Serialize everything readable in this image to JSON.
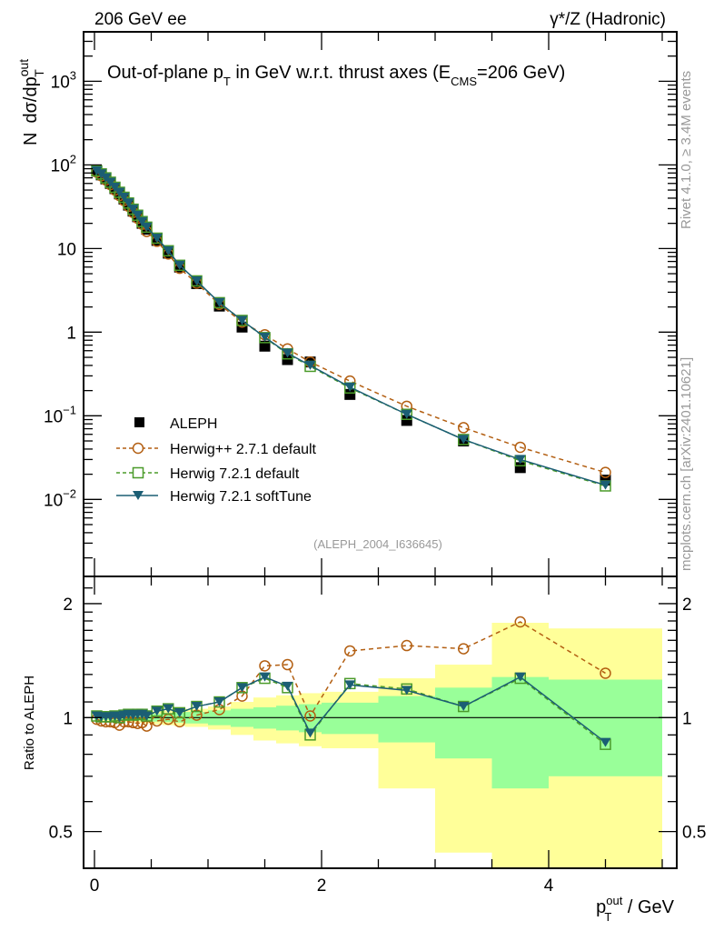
{
  "header": {
    "left": "206 GeV ee",
    "right": "γ*/Z (Hadronic)"
  },
  "side_text": {
    "rivet": "Rivet 4.1.0, ≥ 3.4M events",
    "mcplots": "mcplots.cern.ch [arXiv:2401.10621]"
  },
  "chart_data": [
    {
      "type": "line",
      "panel": "main",
      "title": "Out-of-plane p_T in GeV w.r.t. thrust axes (E_CMS=206 GeV)",
      "title_parts": {
        "pre": "Out-of-plane p",
        "sub1": "T",
        "mid": " in GeV w.r.t. thrust axes (E",
        "sub2": "CMS",
        "post": "=206 GeV)"
      },
      "ylabel": "N  dσ/dp_T^out",
      "ylabel_parts": {
        "n": "N",
        "main": "dσ/dp",
        "sup": "out",
        "sub": "T"
      },
      "xlabel": "",
      "yscale": "log",
      "xlim": [
        -0.1,
        5.13
      ],
      "ylim": [
        0.0012,
        3900
      ],
      "yticks": [
        {
          "v": 1000,
          "base": "10",
          "exp": "3"
        },
        {
          "v": 100,
          "base": "10",
          "exp": "2"
        },
        {
          "v": 10,
          "base": "10",
          "exp": ""
        },
        {
          "v": 1,
          "base": "1",
          "exp": ""
        },
        {
          "v": 0.1,
          "base": "10",
          "exp": "−1"
        },
        {
          "v": 0.01,
          "base": "10",
          "exp": "−2"
        }
      ],
      "grid": false,
      "legend_position": "bottom-left",
      "annotation": "(ALEPH_2004_I636645)",
      "x": [
        0.02,
        0.06,
        0.1,
        0.14,
        0.18,
        0.22,
        0.26,
        0.3,
        0.34,
        0.38,
        0.42,
        0.46,
        0.55,
        0.65,
        0.75,
        0.9,
        1.1,
        1.3,
        1.5,
        1.7,
        1.9,
        2.25,
        2.75,
        3.25,
        3.75,
        4.5
      ],
      "series": [
        {
          "name": "ALEPH",
          "style": "data",
          "color": "#000000",
          "marker": "filled-square",
          "values": [
            84,
            76,
            68,
            60,
            52,
            45,
            39,
            33,
            28,
            24,
            20,
            17,
            12.5,
            8.8,
            6.0,
            3.8,
            2.05,
            1.15,
            0.68,
            0.47,
            0.44,
            0.18,
            0.088,
            0.05,
            0.024,
            0.017
          ]
        },
        {
          "name": "Herwig++ 2.7.1 default",
          "style": "dashed",
          "color": "#b35f12",
          "marker": "open-circle",
          "values": [
            82,
            74,
            66,
            58,
            50,
            43,
            37.5,
            32,
            27,
            23,
            19.5,
            16,
            12.2,
            8.6,
            5.8,
            3.85,
            2.15,
            1.32,
            0.93,
            0.63,
            0.44,
            0.26,
            0.13,
            0.072,
            0.042,
            0.021
          ]
        },
        {
          "name": "Herwig 7.2.1 default",
          "style": "dashed",
          "color": "#4b9b2a",
          "marker": "open-square",
          "values": [
            85,
            78,
            70,
            62,
            54,
            47,
            41,
            35,
            29.5,
            25,
            21,
            18,
            13.3,
            9.4,
            6.3,
            4.1,
            2.25,
            1.38,
            0.86,
            0.55,
            0.39,
            0.215,
            0.104,
            0.052,
            0.029,
            0.0145
          ]
        },
        {
          "name": "Herwig 7.2.1 softTune",
          "style": "solid",
          "color": "#1b5e74",
          "marker": "filled-triangle-down",
          "values": [
            85,
            78,
            70,
            62,
            54,
            47,
            41,
            35,
            29.5,
            25,
            21,
            18,
            13.3,
            9.4,
            6.3,
            4.1,
            2.25,
            1.38,
            0.87,
            0.56,
            0.4,
            0.22,
            0.104,
            0.052,
            0.03,
            0.0148
          ]
        }
      ]
    },
    {
      "type": "line",
      "panel": "ratio",
      "ylabel": "Ratio to ALEPH",
      "xlabel": "p_T^out / GeV",
      "xlabel_parts": {
        "p": "p",
        "sup": "out",
        "sub": "T",
        "rest": " / GeV"
      },
      "yscale": "log",
      "xlim": [
        -0.1,
        5.13
      ],
      "ylim": [
        0.4,
        2.36
      ],
      "xticks": [
        0,
        2,
        4
      ],
      "yticks": [
        0.5,
        1,
        2
      ],
      "reference_line": 1,
      "bands": {
        "inner_color": "#99ff99",
        "outer_color": "#ffff99",
        "bins": [
          {
            "x0": 0.0,
            "x1": 0.04,
            "in": [
              0.985,
              1.015
            ],
            "out": [
              0.98,
              1.02
            ]
          },
          {
            "x0": 0.04,
            "x1": 0.08,
            "in": [
              0.985,
              1.015
            ],
            "out": [
              0.98,
              1.02
            ]
          },
          {
            "x0": 0.08,
            "x1": 0.12,
            "in": [
              0.985,
              1.015
            ],
            "out": [
              0.978,
              1.022
            ]
          },
          {
            "x0": 0.12,
            "x1": 0.16,
            "in": [
              0.985,
              1.015
            ],
            "out": [
              0.978,
              1.022
            ]
          },
          {
            "x0": 0.16,
            "x1": 0.2,
            "in": [
              0.984,
              1.016
            ],
            "out": [
              0.976,
              1.024
            ]
          },
          {
            "x0": 0.2,
            "x1": 0.24,
            "in": [
              0.984,
              1.016
            ],
            "out": [
              0.976,
              1.024
            ]
          },
          {
            "x0": 0.24,
            "x1": 0.28,
            "in": [
              0.983,
              1.017
            ],
            "out": [
              0.975,
              1.025
            ]
          },
          {
            "x0": 0.28,
            "x1": 0.32,
            "in": [
              0.983,
              1.017
            ],
            "out": [
              0.974,
              1.026
            ]
          },
          {
            "x0": 0.32,
            "x1": 0.36,
            "in": [
              0.982,
              1.018
            ],
            "out": [
              0.972,
              1.028
            ]
          },
          {
            "x0": 0.36,
            "x1": 0.4,
            "in": [
              0.981,
              1.019
            ],
            "out": [
              0.97,
              1.03
            ]
          },
          {
            "x0": 0.4,
            "x1": 0.44,
            "in": [
              0.98,
              1.02
            ],
            "out": [
              0.968,
              1.032
            ]
          },
          {
            "x0": 0.44,
            "x1": 0.5,
            "in": [
              0.978,
              1.022
            ],
            "out": [
              0.965,
              1.035
            ]
          },
          {
            "x0": 0.5,
            "x1": 0.6,
            "in": [
              0.976,
              1.024
            ],
            "out": [
              0.96,
              1.04
            ]
          },
          {
            "x0": 0.6,
            "x1": 0.7,
            "in": [
              0.973,
              1.027
            ],
            "out": [
              0.955,
              1.045
            ]
          },
          {
            "x0": 0.7,
            "x1": 0.8,
            "in": [
              0.97,
              1.03
            ],
            "out": [
              0.95,
              1.05
            ]
          },
          {
            "x0": 0.8,
            "x1": 1.0,
            "in": [
              0.965,
              1.035
            ],
            "out": [
              0.945,
              1.055
            ]
          },
          {
            "x0": 1.0,
            "x1": 1.2,
            "in": [
              0.955,
              1.045
            ],
            "out": [
              0.93,
              1.07
            ]
          },
          {
            "x0": 1.2,
            "x1": 1.4,
            "in": [
              0.945,
              1.055
            ],
            "out": [
              0.9,
              1.1
            ]
          },
          {
            "x0": 1.4,
            "x1": 1.6,
            "in": [
              0.935,
              1.065
            ],
            "out": [
              0.87,
              1.13
            ]
          },
          {
            "x0": 1.6,
            "x1": 1.8,
            "in": [
              0.925,
              1.075
            ],
            "out": [
              0.855,
              1.145
            ]
          },
          {
            "x0": 1.8,
            "x1": 2.0,
            "in": [
              0.915,
              1.085
            ],
            "out": [
              0.84,
              1.16
            ]
          },
          {
            "x0": 2.0,
            "x1": 2.5,
            "in": [
              0.905,
              1.095
            ],
            "out": [
              0.83,
              1.17
            ]
          },
          {
            "x0": 2.5,
            "x1": 3.0,
            "in": [
              0.86,
              1.14
            ],
            "out": [
              0.65,
              1.27
            ]
          },
          {
            "x0": 3.0,
            "x1": 3.5,
            "in": [
              0.78,
              1.2
            ],
            "out": [
              0.44,
              1.38
            ]
          },
          {
            "x0": 3.5,
            "x1": 4.0,
            "in": [
              0.65,
              1.28
            ],
            "out": [
              0.33,
              1.78
            ]
          },
          {
            "x0": 4.0,
            "x1": 5.0,
            "in": [
              0.7,
              1.26
            ],
            "out": [
              0.33,
              1.72
            ]
          }
        ]
      },
      "x": [
        0.02,
        0.06,
        0.1,
        0.14,
        0.18,
        0.22,
        0.26,
        0.3,
        0.34,
        0.38,
        0.42,
        0.46,
        0.55,
        0.65,
        0.75,
        0.9,
        1.1,
        1.3,
        1.5,
        1.7,
        1.9,
        2.25,
        2.75,
        3.25,
        3.75,
        4.5
      ],
      "series": [
        {
          "name": "Herwig++ 2.7.1 default",
          "style": "dashed",
          "color": "#b35f12",
          "marker": "open-circle",
          "values": [
            0.99,
            0.98,
            0.975,
            0.975,
            0.97,
            0.955,
            0.975,
            0.975,
            0.97,
            0.965,
            0.97,
            0.95,
            0.98,
            0.99,
            0.975,
            1.015,
            1.05,
            1.14,
            1.37,
            1.38,
            1.01,
            1.5,
            1.55,
            1.52,
            1.79,
            1.31
          ]
        },
        {
          "name": "Herwig 7.2.1 default",
          "style": "dashed",
          "color": "#4b9b2a",
          "marker": "open-square",
          "values": [
            1.01,
            1.005,
            1.005,
            1.005,
            1.01,
            1.0,
            1.015,
            1.02,
            1.015,
            1.02,
            1.02,
            1.01,
            1.04,
            1.055,
            1.03,
            1.07,
            1.1,
            1.2,
            1.27,
            1.2,
            0.9,
            1.23,
            1.19,
            1.07,
            1.27,
            0.85
          ]
        },
        {
          "name": "Herwig 7.2.1 softTune",
          "style": "solid",
          "color": "#1b5e74",
          "marker": "filled-triangle-down",
          "values": [
            1.01,
            1.005,
            1.005,
            1.005,
            1.01,
            1.0,
            1.015,
            1.02,
            1.015,
            1.02,
            1.02,
            1.01,
            1.04,
            1.055,
            1.03,
            1.07,
            1.1,
            1.2,
            1.28,
            1.21,
            0.91,
            1.22,
            1.18,
            1.07,
            1.28,
            0.86
          ]
        }
      ]
    }
  ]
}
